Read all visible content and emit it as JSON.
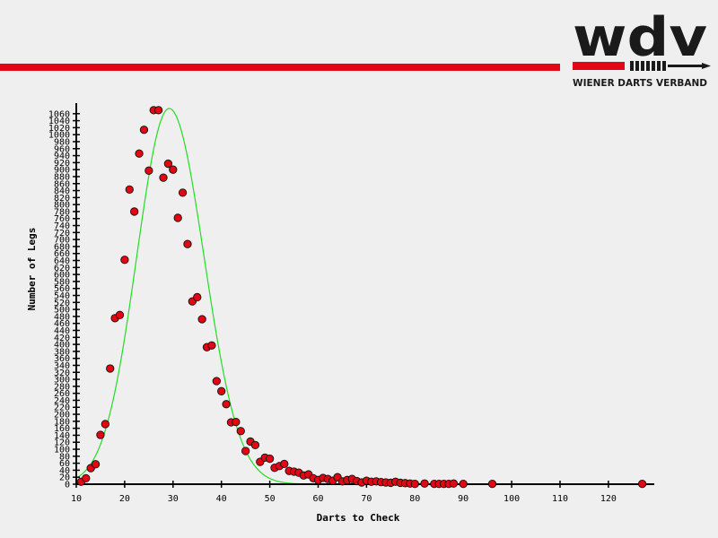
{
  "logo": {
    "brand_text": "wdv",
    "tagline": "WIENER DARTS VERBAND",
    "brand_color": "#e30613"
  },
  "chart_data": {
    "type": "scatter",
    "title": "",
    "xlabel": "Darts to Check",
    "ylabel": "Number of Legs",
    "xlim": [
      10,
      128
    ],
    "ylim": [
      0,
      1080
    ],
    "x_ticks": [
      10,
      20,
      30,
      40,
      50,
      60,
      70,
      80,
      90,
      100,
      110,
      120
    ],
    "y_tick_step": 20,
    "grid": false,
    "legend": "none",
    "series": [
      {
        "marker_color": "#e30613",
        "points": [
          [
            11,
            7
          ],
          [
            12,
            17
          ],
          [
            13,
            46
          ],
          [
            14,
            57
          ],
          [
            15,
            141
          ],
          [
            16,
            172
          ],
          [
            17,
            331
          ],
          [
            18,
            475
          ],
          [
            19,
            484
          ],
          [
            20,
            642
          ],
          [
            21,
            843
          ],
          [
            22,
            780
          ],
          [
            23,
            946
          ],
          [
            24,
            1014
          ],
          [
            25,
            897
          ],
          [
            26,
            1070
          ],
          [
            27,
            1070
          ],
          [
            28,
            877
          ],
          [
            29,
            917
          ],
          [
            30,
            900
          ],
          [
            31,
            762
          ],
          [
            32,
            834
          ],
          [
            33,
            687
          ],
          [
            34,
            523
          ],
          [
            35,
            535
          ],
          [
            36,
            472
          ],
          [
            37,
            392
          ],
          [
            38,
            397
          ],
          [
            39,
            295
          ],
          [
            40,
            266
          ],
          [
            41,
            229
          ],
          [
            42,
            177
          ],
          [
            43,
            178
          ],
          [
            44,
            152
          ],
          [
            45,
            95
          ],
          [
            46,
            122
          ],
          [
            47,
            112
          ],
          [
            48,
            64
          ],
          [
            49,
            76
          ],
          [
            50,
            73
          ],
          [
            51,
            47
          ],
          [
            52,
            52
          ],
          [
            53,
            58
          ],
          [
            54,
            38
          ],
          [
            55,
            36
          ],
          [
            56,
            33
          ],
          [
            57,
            25
          ],
          [
            58,
            28
          ],
          [
            59,
            17
          ],
          [
            60,
            12
          ],
          [
            61,
            18
          ],
          [
            62,
            15
          ],
          [
            63,
            10
          ],
          [
            64,
            20
          ],
          [
            65,
            8
          ],
          [
            66,
            12
          ],
          [
            67,
            15
          ],
          [
            68,
            9
          ],
          [
            69,
            5
          ],
          [
            70,
            10
          ],
          [
            71,
            7
          ],
          [
            72,
            8
          ],
          [
            73,
            6
          ],
          [
            74,
            5
          ],
          [
            75,
            4
          ],
          [
            76,
            7
          ],
          [
            77,
            4
          ],
          [
            78,
            3
          ],
          [
            79,
            2
          ],
          [
            80,
            1
          ],
          [
            82,
            2
          ],
          [
            84,
            1
          ],
          [
            85,
            1
          ],
          [
            86,
            1
          ],
          [
            87,
            1
          ],
          [
            88,
            2
          ],
          [
            90,
            1
          ],
          [
            96,
            1
          ],
          [
            127,
            1
          ]
        ]
      },
      {
        "line_color": "#22dd22",
        "fit": "gaussian",
        "peak_x": 29.2,
        "peak_y": 1075,
        "sigma_left": 6.7,
        "sigma_right": 7.2,
        "x_range": [
          10,
          105
        ]
      }
    ]
  }
}
